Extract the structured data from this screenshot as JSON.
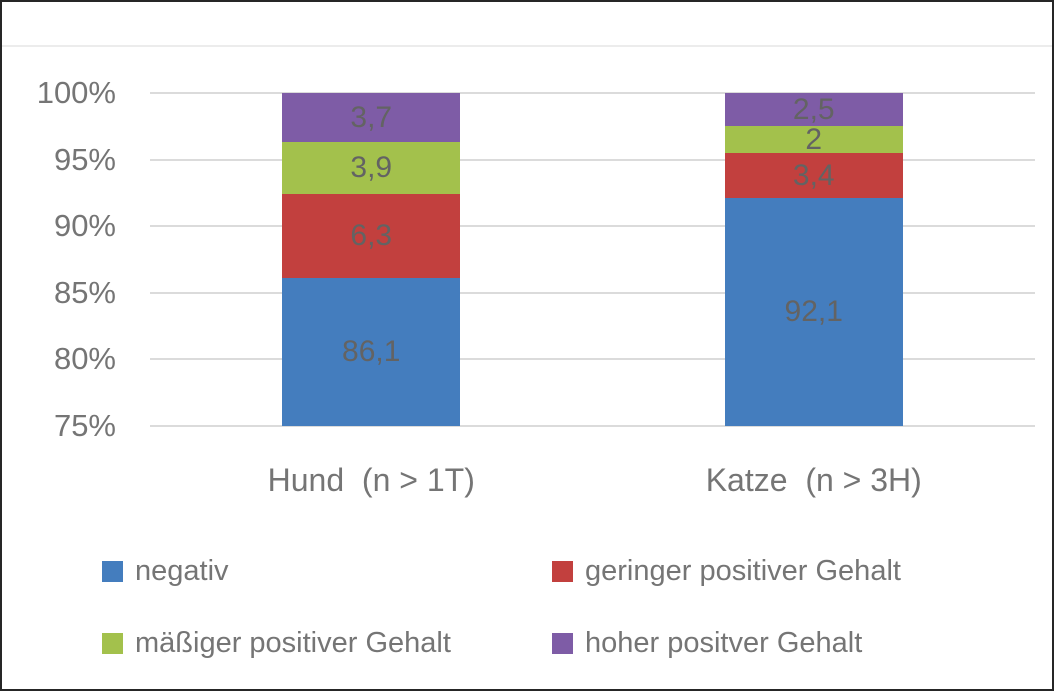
{
  "chart_data": {
    "type": "bar",
    "stacked": true,
    "stacked_mode": "percent",
    "title": "",
    "xlabel": "",
    "ylabel": "",
    "categories": [
      "Hund  (n > 1T)",
      "Katze  (n > 3H)"
    ],
    "series": [
      {
        "name": "negativ",
        "color": "#447DBE",
        "values": [
          86.1,
          92.1
        ],
        "labels": [
          "86,1",
          "92,1"
        ]
      },
      {
        "name": "geringer positiver Gehalt",
        "color": "#C2403E",
        "values": [
          6.3,
          3.4
        ],
        "labels": [
          "6,3",
          "3,4"
        ]
      },
      {
        "name": "mäßiger positiver Gehalt",
        "color": "#A3C14C",
        "values": [
          3.9,
          2.0
        ],
        "labels": [
          "3,9",
          "2"
        ]
      },
      {
        "name": "hoher positver Gehalt",
        "color": "#7E5CA6",
        "values": [
          3.7,
          2.5
        ],
        "labels": [
          "3,7",
          "2,5"
        ]
      }
    ],
    "ylim": [
      75,
      100
    ],
    "yticks": [
      {
        "value": 100,
        "label": "100%"
      },
      {
        "value": 95,
        "label": "95%"
      },
      {
        "value": 90,
        "label": "90%"
      },
      {
        "value": 85,
        "label": "85%"
      },
      {
        "value": 80,
        "label": "80%"
      },
      {
        "value": 75,
        "label": "75%"
      }
    ],
    "grid": true,
    "legend_position": "bottom",
    "colors": {
      "axis_text": "#757575",
      "data_label_text": "#636363",
      "gridline": "#dbdbdb",
      "frame_border": "#262626",
      "top_divider": "#ececec",
      "background": "#ffffff"
    }
  }
}
